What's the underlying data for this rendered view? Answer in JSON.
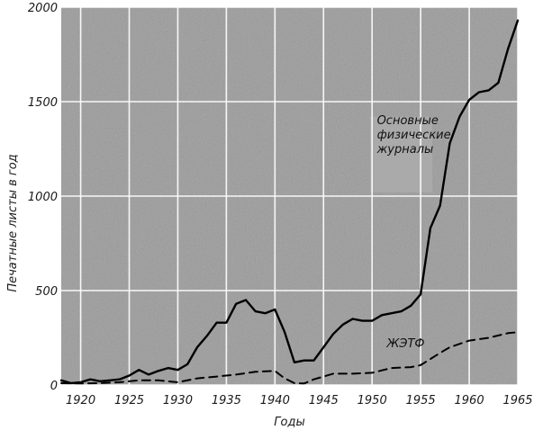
{
  "chart_data": {
    "type": "line",
    "title": "",
    "xlabel": "Годы",
    "ylabel": "Печатные листы в год",
    "xlim": [
      1918,
      1965
    ],
    "ylim": [
      0,
      2000
    ],
    "x_ticks": [
      1920,
      1925,
      1930,
      1935,
      1940,
      1945,
      1950,
      1955,
      1960,
      1965
    ],
    "y_ticks": [
      0,
      500,
      1000,
      1500,
      2000
    ],
    "grid": true,
    "background": "#9a9a9a",
    "series": [
      {
        "name": "Основные физические журналы",
        "style": "solid",
        "color": "#000000",
        "points": [
          [
            1918,
            25
          ],
          [
            1919,
            10
          ],
          [
            1920,
            15
          ],
          [
            1921,
            30
          ],
          [
            1922,
            20
          ],
          [
            1923,
            25
          ],
          [
            1924,
            30
          ],
          [
            1925,
            50
          ],
          [
            1926,
            80
          ],
          [
            1927,
            55
          ],
          [
            1928,
            75
          ],
          [
            1929,
            90
          ],
          [
            1930,
            80
          ],
          [
            1931,
            110
          ],
          [
            1932,
            200
          ],
          [
            1933,
            260
          ],
          [
            1934,
            330
          ],
          [
            1935,
            330
          ],
          [
            1936,
            430
          ],
          [
            1937,
            450
          ],
          [
            1938,
            390
          ],
          [
            1939,
            380
          ],
          [
            1940,
            400
          ],
          [
            1941,
            280
          ],
          [
            1942,
            120
          ],
          [
            1943,
            130
          ],
          [
            1944,
            130
          ],
          [
            1945,
            200
          ],
          [
            1946,
            270
          ],
          [
            1947,
            320
          ],
          [
            1948,
            350
          ],
          [
            1949,
            340
          ],
          [
            1950,
            340
          ],
          [
            1951,
            370
          ],
          [
            1952,
            380
          ],
          [
            1953,
            390
          ],
          [
            1954,
            420
          ],
          [
            1955,
            480
          ],
          [
            1956,
            830
          ],
          [
            1957,
            950
          ],
          [
            1958,
            1280
          ],
          [
            1959,
            1420
          ],
          [
            1960,
            1510
          ],
          [
            1961,
            1550
          ],
          [
            1962,
            1560
          ],
          [
            1963,
            1600
          ],
          [
            1964,
            1780
          ],
          [
            1965,
            1930
          ]
        ]
      },
      {
        "name": "ЖЭТФ",
        "style": "dashed",
        "color": "#000000",
        "points": [
          [
            1918,
            10
          ],
          [
            1920,
            8
          ],
          [
            1922,
            10
          ],
          [
            1924,
            15
          ],
          [
            1926,
            25
          ],
          [
            1928,
            25
          ],
          [
            1930,
            15
          ],
          [
            1932,
            35
          ],
          [
            1934,
            45
          ],
          [
            1936,
            55
          ],
          [
            1938,
            70
          ],
          [
            1940,
            75
          ],
          [
            1941,
            35
          ],
          [
            1942,
            10
          ],
          [
            1943,
            8
          ],
          [
            1944,
            30
          ],
          [
            1946,
            60
          ],
          [
            1948,
            60
          ],
          [
            1950,
            65
          ],
          [
            1952,
            90
          ],
          [
            1954,
            95
          ],
          [
            1955,
            105
          ],
          [
            1957,
            170
          ],
          [
            1958,
            200
          ],
          [
            1960,
            235
          ],
          [
            1962,
            250
          ],
          [
            1964,
            275
          ],
          [
            1965,
            280
          ]
        ]
      }
    ],
    "annotations": [
      {
        "text_lines": [
          "Основные",
          "физические",
          "журналы"
        ],
        "x": 1950.5,
        "y": 1380
      },
      {
        "text_lines": [
          "ЖЭТФ"
        ],
        "x": 1951.5,
        "y": 200
      }
    ]
  }
}
